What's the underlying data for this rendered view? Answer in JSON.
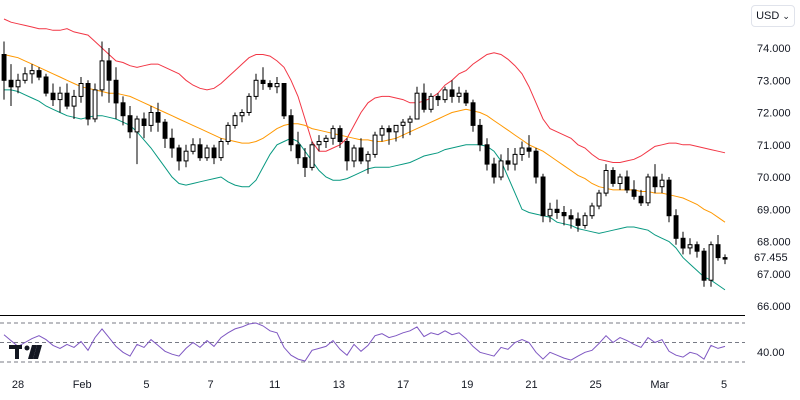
{
  "currency_selector": {
    "label": "USD"
  },
  "last_price_label": "67.455",
  "colors": {
    "candle": "#000000",
    "upper_band": "#f23645",
    "basis": "#ff9800",
    "lower_band": "#089981",
    "rsi": "#7e57c2",
    "grid": "#e0e3eb"
  },
  "chart_data": [
    {
      "type": "candlestick",
      "panel": "price",
      "ylim": [
        66,
        74.8
      ],
      "y_ticks": [
        "74.000",
        "73.000",
        "72.000",
        "71.000",
        "70.000",
        "69.000",
        "68.000",
        "67.000",
        "66.000"
      ],
      "x_tick_labels": [
        "28",
        "Feb",
        "5",
        "7",
        "11",
        "13",
        "17",
        "19",
        "21",
        "25",
        "Mar",
        "5"
      ],
      "ohlc": [
        [
          73.8,
          74.2,
          72.4,
          73.0
        ],
        [
          73.0,
          73.5,
          72.2,
          72.8
        ],
        [
          72.8,
          73.2,
          72.6,
          73.0
        ],
        [
          73.0,
          73.4,
          72.9,
          73.2
        ],
        [
          73.2,
          73.5,
          72.9,
          73.3
        ],
        [
          73.3,
          73.4,
          73.0,
          73.1
        ],
        [
          73.1,
          73.2,
          72.5,
          72.6
        ],
        [
          72.6,
          72.9,
          72.2,
          72.4
        ],
        [
          72.4,
          72.8,
          72.0,
          72.6
        ],
        [
          72.6,
          72.9,
          72.1,
          72.2
        ],
        [
          72.2,
          72.7,
          71.8,
          72.5
        ],
        [
          72.5,
          73.1,
          72.3,
          72.9
        ],
        [
          72.9,
          73.0,
          71.6,
          71.8
        ],
        [
          71.8,
          72.9,
          71.7,
          72.7
        ],
        [
          72.7,
          74.2,
          72.5,
          73.6
        ],
        [
          73.6,
          74.0,
          72.3,
          73.0
        ],
        [
          73.0,
          73.4,
          71.8,
          72.3
        ],
        [
          72.3,
          72.5,
          71.6,
          71.9
        ],
        [
          71.9,
          72.2,
          71.2,
          71.4
        ],
        [
          71.4,
          71.9,
          70.4,
          71.8
        ],
        [
          71.8,
          72.0,
          71.2,
          71.6
        ],
        [
          71.6,
          72.2,
          71.4,
          72.0
        ],
        [
          72.0,
          72.3,
          71.4,
          71.7
        ],
        [
          71.7,
          71.8,
          70.9,
          71.2
        ],
        [
          71.2,
          71.5,
          70.6,
          70.9
        ],
        [
          70.9,
          71.0,
          70.2,
          70.5
        ],
        [
          70.5,
          71.0,
          70.3,
          70.8
        ],
        [
          70.8,
          71.2,
          70.7,
          71.0
        ],
        [
          71.0,
          71.2,
          70.5,
          70.6
        ],
        [
          70.6,
          71.0,
          70.5,
          70.9
        ],
        [
          70.9,
          71.0,
          70.4,
          70.6
        ],
        [
          70.6,
          71.2,
          70.5,
          71.1
        ],
        [
          71.1,
          71.7,
          71.0,
          71.6
        ],
        [
          71.6,
          72.0,
          71.5,
          71.9
        ],
        [
          71.9,
          72.1,
          71.7,
          72.0
        ],
        [
          72.0,
          72.6,
          71.9,
          72.5
        ],
        [
          72.5,
          73.2,
          72.4,
          73.0
        ],
        [
          73.0,
          73.4,
          72.7,
          72.9
        ],
        [
          72.9,
          73.0,
          72.7,
          72.8
        ],
        [
          72.8,
          73.1,
          72.6,
          72.9
        ],
        [
          72.9,
          72.9,
          71.8,
          71.9
        ],
        [
          71.9,
          72.1,
          70.8,
          71.0
        ],
        [
          71.0,
          71.4,
          70.4,
          70.6
        ],
        [
          70.6,
          70.9,
          70.0,
          70.3
        ],
        [
          70.3,
          71.1,
          70.2,
          71.0
        ],
        [
          71.0,
          71.3,
          70.8,
          71.1
        ],
        [
          71.1,
          71.3,
          70.9,
          71.2
        ],
        [
          71.2,
          71.6,
          71.0,
          71.5
        ],
        [
          71.5,
          71.6,
          70.9,
          71.1
        ],
        [
          71.1,
          71.2,
          70.2,
          70.5
        ],
        [
          70.5,
          71.0,
          70.3,
          70.9
        ],
        [
          70.9,
          71.2,
          70.4,
          70.5
        ],
        [
          70.5,
          70.8,
          70.1,
          70.7
        ],
        [
          70.7,
          71.4,
          70.6,
          71.3
        ],
        [
          71.3,
          71.6,
          71.1,
          71.5
        ],
        [
          71.5,
          71.6,
          71.0,
          71.4
        ],
        [
          71.4,
          71.6,
          71.1,
          71.6
        ],
        [
          71.6,
          71.8,
          71.2,
          71.7
        ],
        [
          71.7,
          71.9,
          71.3,
          71.8
        ],
        [
          71.8,
          72.8,
          71.8,
          72.6
        ],
        [
          72.6,
          72.9,
          72.0,
          72.1
        ],
        [
          72.1,
          72.6,
          72.0,
          72.5
        ],
        [
          72.5,
          72.6,
          72.2,
          72.4
        ],
        [
          72.4,
          72.8,
          72.3,
          72.7
        ],
        [
          72.7,
          73.0,
          72.3,
          72.5
        ],
        [
          72.5,
          72.8,
          72.3,
          72.6
        ],
        [
          72.6,
          72.7,
          72.2,
          72.3
        ],
        [
          72.3,
          72.4,
          71.4,
          71.6
        ],
        [
          71.6,
          71.8,
          70.8,
          71.0
        ],
        [
          71.0,
          71.2,
          70.2,
          70.4
        ],
        [
          70.4,
          70.6,
          69.8,
          70.0
        ],
        [
          70.0,
          70.7,
          69.9,
          70.5
        ],
        [
          70.5,
          70.9,
          70.2,
          70.4
        ],
        [
          70.4,
          70.9,
          70.2,
          70.7
        ],
        [
          70.7,
          71.1,
          70.5,
          70.9
        ],
        [
          70.9,
          71.3,
          70.6,
          70.8
        ],
        [
          70.8,
          70.9,
          69.8,
          70.0
        ],
        [
          70.0,
          70.1,
          68.6,
          68.8
        ],
        [
          68.8,
          69.2,
          68.6,
          69.0
        ],
        [
          69.0,
          69.3,
          68.7,
          68.9
        ],
        [
          68.9,
          69.1,
          68.5,
          68.8
        ],
        [
          68.8,
          69.0,
          68.4,
          68.7
        ],
        [
          68.7,
          68.9,
          68.3,
          68.5
        ],
        [
          68.5,
          68.9,
          68.4,
          68.8
        ],
        [
          68.8,
          69.2,
          68.7,
          69.1
        ],
        [
          69.1,
          69.6,
          69.0,
          69.5
        ],
        [
          69.5,
          70.4,
          69.4,
          70.2
        ],
        [
          70.2,
          70.3,
          69.7,
          69.8
        ],
        [
          69.8,
          70.1,
          69.6,
          70.0
        ],
        [
          70.0,
          70.2,
          69.5,
          69.6
        ],
        [
          69.6,
          69.9,
          69.3,
          69.4
        ],
        [
          69.4,
          69.6,
          69.1,
          69.2
        ],
        [
          69.2,
          70.1,
          69.1,
          70.0
        ],
        [
          70.0,
          70.4,
          69.5,
          69.7
        ],
        [
          69.7,
          70.1,
          69.5,
          69.9
        ],
        [
          69.9,
          70.0,
          68.6,
          68.8
        ],
        [
          68.8,
          69.0,
          67.9,
          68.1
        ],
        [
          68.1,
          68.3,
          67.6,
          67.8
        ],
        [
          67.8,
          68.1,
          67.6,
          67.9
        ],
        [
          67.9,
          68.0,
          67.5,
          67.7
        ],
        [
          67.7,
          67.8,
          66.6,
          66.8
        ],
        [
          66.8,
          68.0,
          66.6,
          67.9
        ],
        [
          67.9,
          68.2,
          67.4,
          67.5
        ],
        [
          67.5,
          67.6,
          67.3,
          67.455
        ]
      ],
      "bollinger": {
        "upper": [
          74.9,
          74.8,
          74.75,
          74.7,
          74.65,
          74.6,
          74.6,
          74.55,
          74.55,
          74.6,
          74.5,
          74.45,
          74.4,
          74.2,
          74.0,
          73.8,
          73.6,
          73.55,
          73.45,
          73.4,
          73.45,
          73.5,
          73.5,
          73.4,
          73.3,
          73.2,
          73.0,
          72.85,
          72.75,
          72.7,
          72.75,
          72.9,
          73.1,
          73.3,
          73.5,
          73.7,
          73.8,
          73.8,
          73.75,
          73.6,
          73.4,
          73.0,
          72.5,
          71.8,
          71.1,
          70.8,
          70.8,
          70.9,
          71.0,
          71.2,
          71.6,
          72.0,
          72.3,
          72.45,
          72.5,
          72.5,
          72.45,
          72.4,
          72.3,
          72.3,
          72.35,
          72.45,
          72.6,
          72.85,
          73.0,
          73.2,
          73.3,
          73.5,
          73.65,
          73.8,
          73.85,
          73.8,
          73.65,
          73.45,
          73.2,
          72.8,
          72.3,
          71.8,
          71.5,
          71.4,
          71.3,
          71.2,
          71.0,
          70.9,
          70.7,
          70.55,
          70.5,
          70.45,
          70.45,
          70.5,
          70.55,
          70.65,
          70.8,
          70.95,
          71.0,
          71.05,
          71.05,
          71.0,
          71.0,
          70.95,
          70.9,
          70.85,
          70.8,
          70.75
        ],
        "basis": [
          73.8,
          73.75,
          73.7,
          73.6,
          73.5,
          73.4,
          73.3,
          73.2,
          73.1,
          73.0,
          72.9,
          72.8,
          72.75,
          72.7,
          72.65,
          72.6,
          72.6,
          72.55,
          72.5,
          72.4,
          72.3,
          72.2,
          72.1,
          72.0,
          71.9,
          71.8,
          71.7,
          71.6,
          71.5,
          71.4,
          71.3,
          71.2,
          71.15,
          71.1,
          71.05,
          71.05,
          71.1,
          71.2,
          71.35,
          71.5,
          71.6,
          71.65,
          71.65,
          71.6,
          71.5,
          71.45,
          71.4,
          71.35,
          71.3,
          71.25,
          71.2,
          71.15,
          71.15,
          71.1,
          71.1,
          71.15,
          71.2,
          71.3,
          71.4,
          71.5,
          71.6,
          71.7,
          71.8,
          71.9,
          72.0,
          72.05,
          72.1,
          72.05,
          72.0,
          71.9,
          71.75,
          71.6,
          71.45,
          71.3,
          71.15,
          71.0,
          70.9,
          70.8,
          70.65,
          70.5,
          70.35,
          70.2,
          70.05,
          69.95,
          69.8,
          69.7,
          69.65,
          69.6,
          69.6,
          69.6,
          69.6,
          69.55,
          69.55,
          69.5,
          69.5,
          69.45,
          69.4,
          69.35,
          69.25,
          69.15,
          69.0,
          68.9,
          68.75,
          68.6
        ],
        "lower": [
          72.7,
          72.7,
          72.65,
          72.55,
          72.45,
          72.35,
          72.2,
          72.1,
          72.0,
          71.9,
          71.85,
          71.8,
          71.85,
          71.9,
          71.9,
          71.85,
          71.8,
          71.7,
          71.6,
          71.4,
          71.15,
          70.9,
          70.6,
          70.3,
          70.0,
          69.8,
          69.75,
          69.8,
          69.85,
          69.9,
          69.95,
          70.0,
          69.85,
          69.75,
          69.7,
          69.7,
          69.9,
          70.3,
          70.7,
          71.0,
          71.1,
          71.2,
          71.1,
          70.8,
          70.5,
          70.2,
          70.0,
          69.9,
          69.9,
          69.95,
          70.05,
          70.15,
          70.25,
          70.3,
          70.3,
          70.3,
          70.35,
          70.4,
          70.45,
          70.55,
          70.65,
          70.7,
          70.75,
          70.85,
          70.9,
          70.95,
          71.0,
          71.0,
          71.0,
          70.95,
          70.8,
          70.5,
          70.0,
          69.5,
          69.0,
          68.9,
          68.85,
          68.8,
          68.75,
          68.6,
          68.55,
          68.5,
          68.4,
          68.35,
          68.3,
          68.25,
          68.3,
          68.35,
          68.4,
          68.45,
          68.45,
          68.4,
          68.35,
          68.2,
          68.1,
          68.0,
          67.8,
          67.5,
          67.3,
          67.1,
          66.9,
          66.8,
          66.65,
          66.5
        ]
      }
    },
    {
      "type": "line",
      "panel": "rsi",
      "ylim": [
        30,
        70
      ],
      "y_ticks": [
        "40.00"
      ],
      "levels": [
        70,
        50,
        30
      ],
      "values": [
        58,
        52,
        46,
        50,
        54,
        57,
        53,
        47,
        44,
        48,
        45,
        51,
        42,
        55,
        64,
        55,
        46,
        40,
        36,
        48,
        45,
        53,
        47,
        41,
        38,
        36,
        44,
        50,
        45,
        52,
        46,
        55,
        60,
        64,
        66,
        69,
        70,
        67,
        62,
        60,
        45,
        37,
        33,
        31,
        42,
        44,
        46,
        52,
        43,
        37,
        48,
        41,
        47,
        57,
        59,
        55,
        57,
        60,
        62,
        66,
        56,
        60,
        58,
        62,
        58,
        60,
        54,
        46,
        40,
        38,
        36,
        45,
        43,
        50,
        53,
        50,
        40,
        33,
        40,
        37,
        34,
        32,
        36,
        40,
        42,
        49,
        57,
        50,
        55,
        52,
        48,
        45,
        55,
        50,
        53,
        41,
        37,
        35,
        40,
        38,
        33,
        47,
        44,
        46
      ]
    }
  ]
}
